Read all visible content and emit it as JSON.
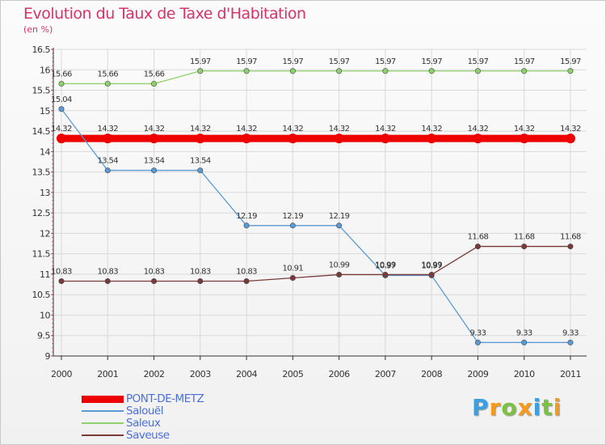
{
  "title": "Evolution du Taux de Taxe d'Habitation",
  "subtitle": "(en %)",
  "brand": {
    "letters": [
      "P",
      "r",
      "o",
      "x",
      "i",
      "t",
      "i"
    ],
    "colors": [
      "#3aa0e0",
      "#f59a1b",
      "#7cc242",
      "#f59a1b",
      "#3aa0e0",
      "#7cc242",
      "#f59a1b"
    ]
  },
  "chart_data": {
    "type": "line",
    "x": [
      "2000",
      "2001",
      "2002",
      "2003",
      "2004",
      "2005",
      "2006",
      "2007",
      "2008",
      "2009",
      "2010",
      "2011"
    ],
    "ylim": [
      9,
      16.5
    ],
    "yticks": [
      "9",
      "9.5",
      "10",
      "10.5",
      "11",
      "11.5",
      "12",
      "12.5",
      "13",
      "13.5",
      "14",
      "14.5",
      "15",
      "15.5",
      "16",
      "16.5"
    ],
    "grid": true,
    "legend_position": "bottom-left",
    "series": [
      {
        "name": "PONT-DE-METZ",
        "color": "#ee0000",
        "values": [
          14.32,
          14.32,
          14.32,
          14.32,
          14.32,
          14.32,
          14.32,
          14.32,
          14.32,
          14.32,
          14.32,
          14.32
        ],
        "labels": [
          "14.32",
          "14.32",
          "14.32",
          "14.32",
          "14.32",
          "14.32",
          "14.32",
          "14.32",
          "14.32",
          "14.32",
          "14.32",
          "14.32"
        ]
      },
      {
        "name": "Salouël",
        "color": "#5b9bd5",
        "values": [
          15.04,
          13.54,
          13.54,
          13.54,
          12.19,
          12.19,
          12.19,
          10.97,
          10.97,
          9.33,
          9.33,
          9.33
        ],
        "labels": [
          "15.04",
          "13.54",
          "13.54",
          "13.54",
          "12.19",
          "12.19",
          "12.19",
          "10.97",
          "10.97",
          "9.33",
          "9.33",
          "9.33"
        ]
      },
      {
        "name": "Saleux",
        "color": "#8fd16a",
        "values": [
          15.66,
          15.66,
          15.66,
          15.97,
          15.97,
          15.97,
          15.97,
          15.97,
          15.97,
          15.97,
          15.97,
          15.97
        ],
        "labels": [
          "15.66",
          "15.66",
          "15.66",
          "15.97",
          "15.97",
          "15.97",
          "15.97",
          "15.97",
          "15.97",
          "15.97",
          "15.97",
          "15.97"
        ]
      },
      {
        "name": "Saveuse",
        "color": "#7a3a3a",
        "values": [
          10.83,
          10.83,
          10.83,
          10.83,
          10.83,
          10.91,
          10.99,
          10.99,
          10.99,
          11.68,
          11.68,
          11.68
        ],
        "labels": [
          "10.83",
          "10.83",
          "10.83",
          "10.83",
          "10.83",
          "10.91",
          "10.99",
          "10.99",
          "10.99",
          "11.68",
          "11.68",
          "11.68"
        ]
      }
    ]
  }
}
